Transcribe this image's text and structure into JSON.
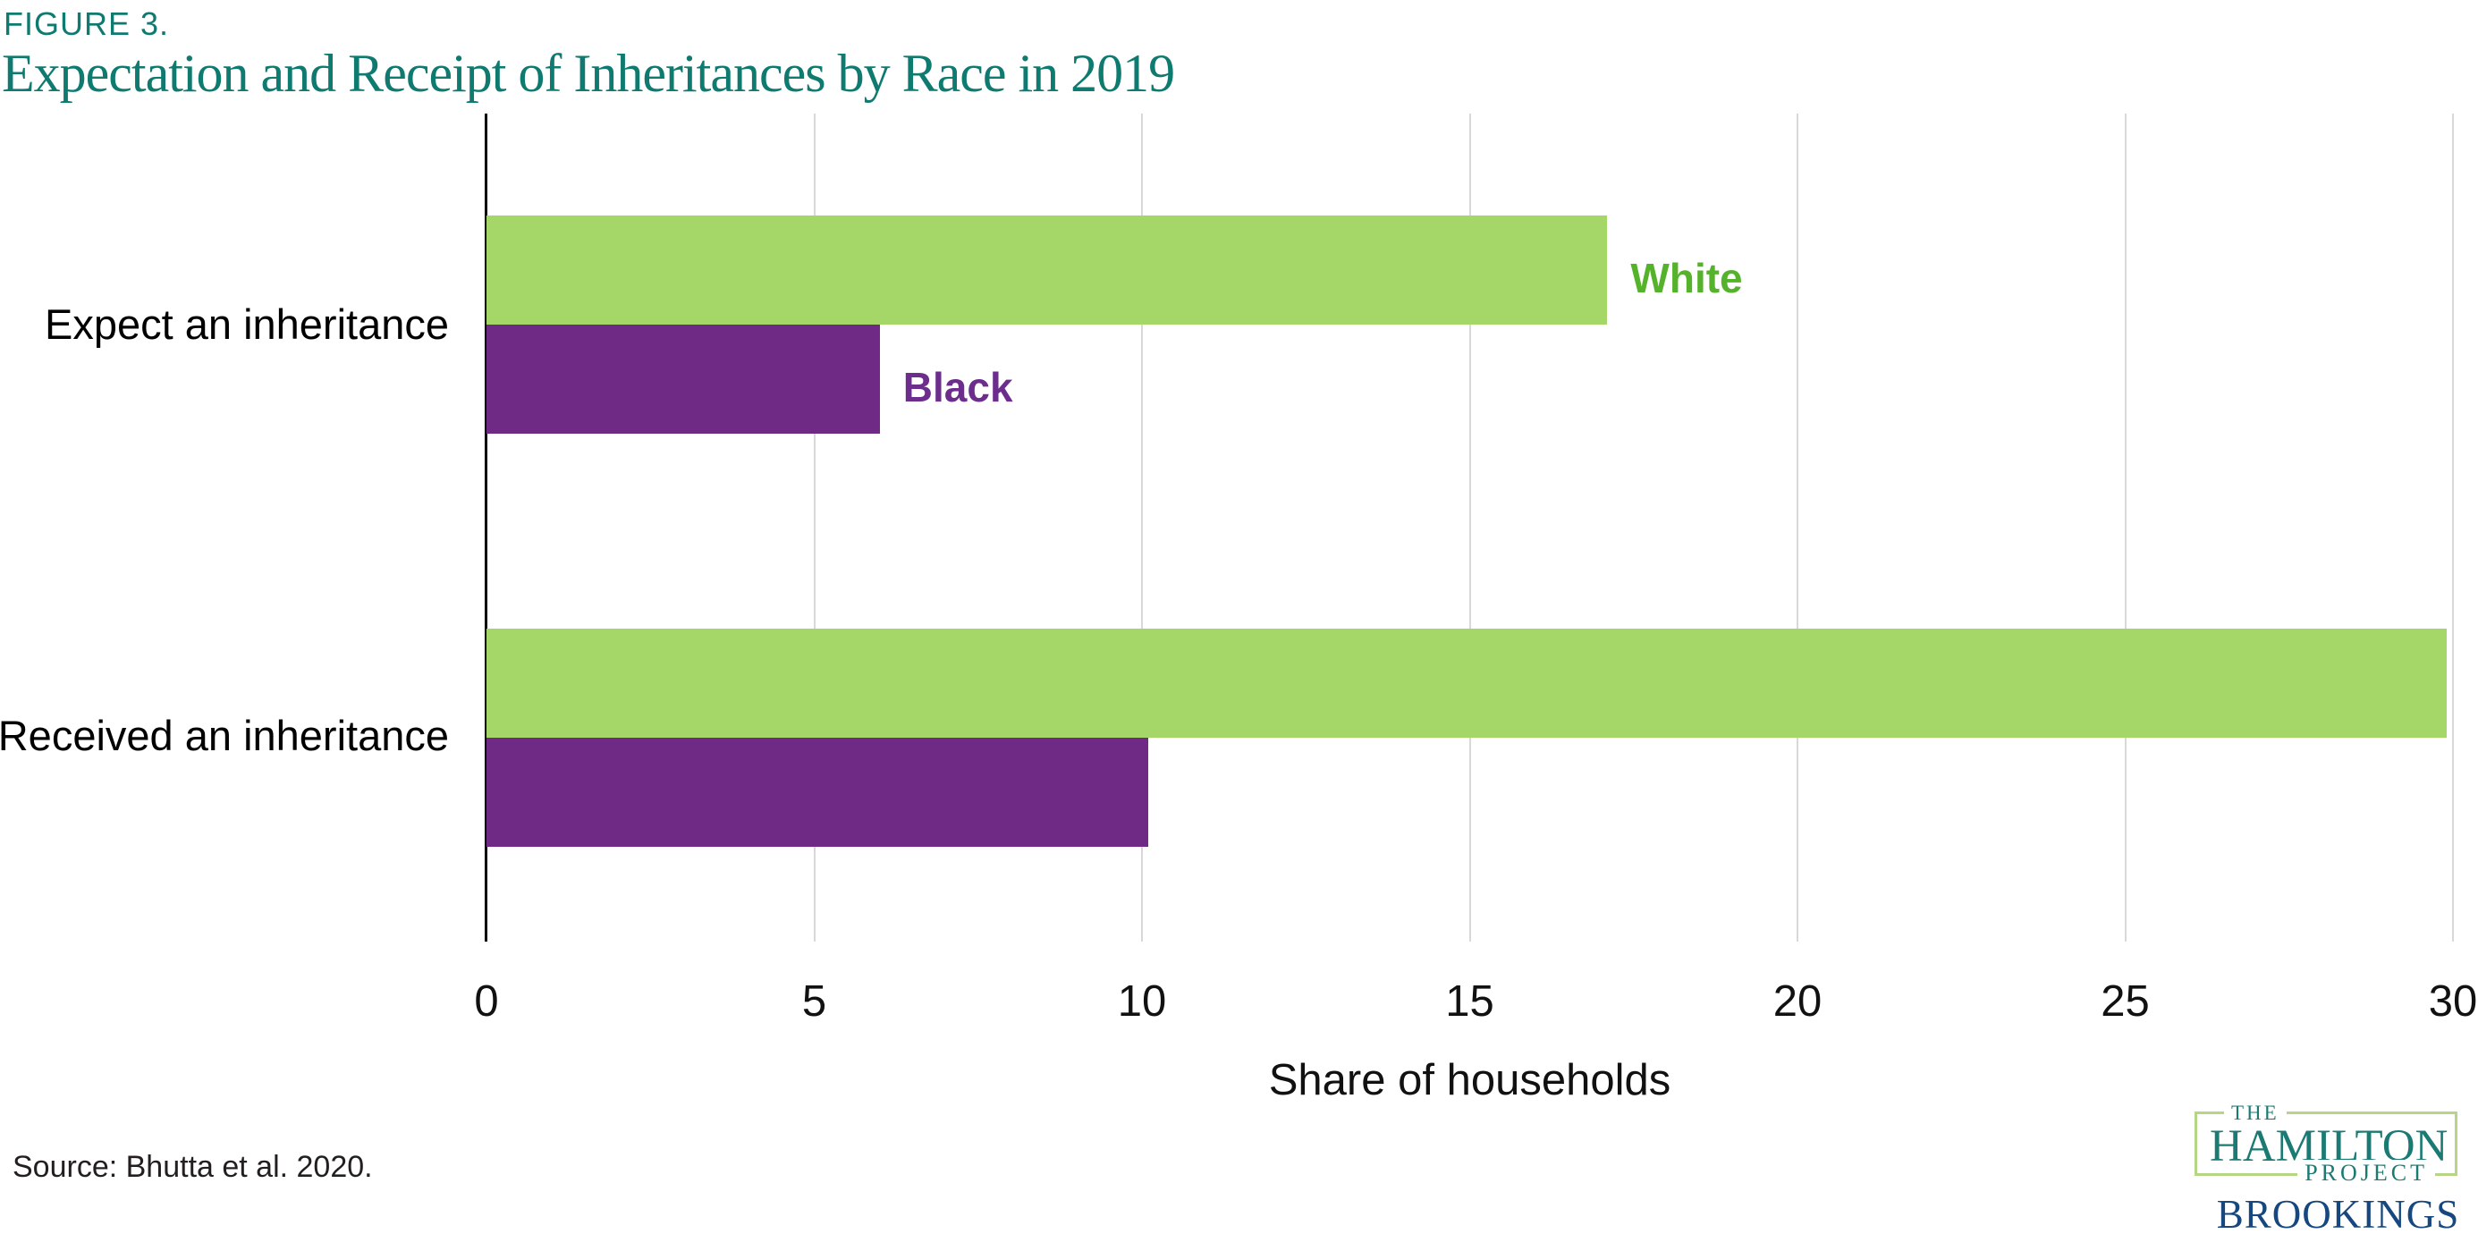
{
  "figure_label": "FIGURE 3.",
  "title": "Expectation and Receipt of Inheritances by Race in 2019",
  "source": "Source: Bhutta et al. 2020.",
  "chart_data": {
    "type": "bar",
    "orientation": "horizontal",
    "title": "Expectation and Receipt of Inheritances by Race in 2019",
    "categories": [
      "Expect an inheritance",
      "Received an inheritance"
    ],
    "series": [
      {
        "name": "White",
        "values": [
          17.1,
          29.9
        ],
        "color": "#a5d768",
        "label_color": "#55b32b"
      },
      {
        "name": "Black",
        "values": [
          6.0,
          10.1
        ],
        "color": "#6f2a85",
        "label_color": "#6c2d8c"
      }
    ],
    "xlabel": "Share of households",
    "xlim": [
      0,
      30
    ],
    "xticks": [
      0,
      5,
      10,
      15,
      20,
      25,
      30
    ],
    "grid": "vertical-gridlines",
    "legend": "inline-labels-next-to-first-group"
  },
  "colors": {
    "title_teal": "#0e7a70",
    "gridline_gray": "#d8d8d8",
    "axis_black": "#000000",
    "logo_teal": "#1b7a74",
    "logo_border_green": "#b6d685",
    "brookings_blue": "#17477f"
  },
  "logo": {
    "the": "THE",
    "hamilton": "HAMILTON",
    "project": "PROJECT",
    "brookings": "BROOKINGS"
  }
}
